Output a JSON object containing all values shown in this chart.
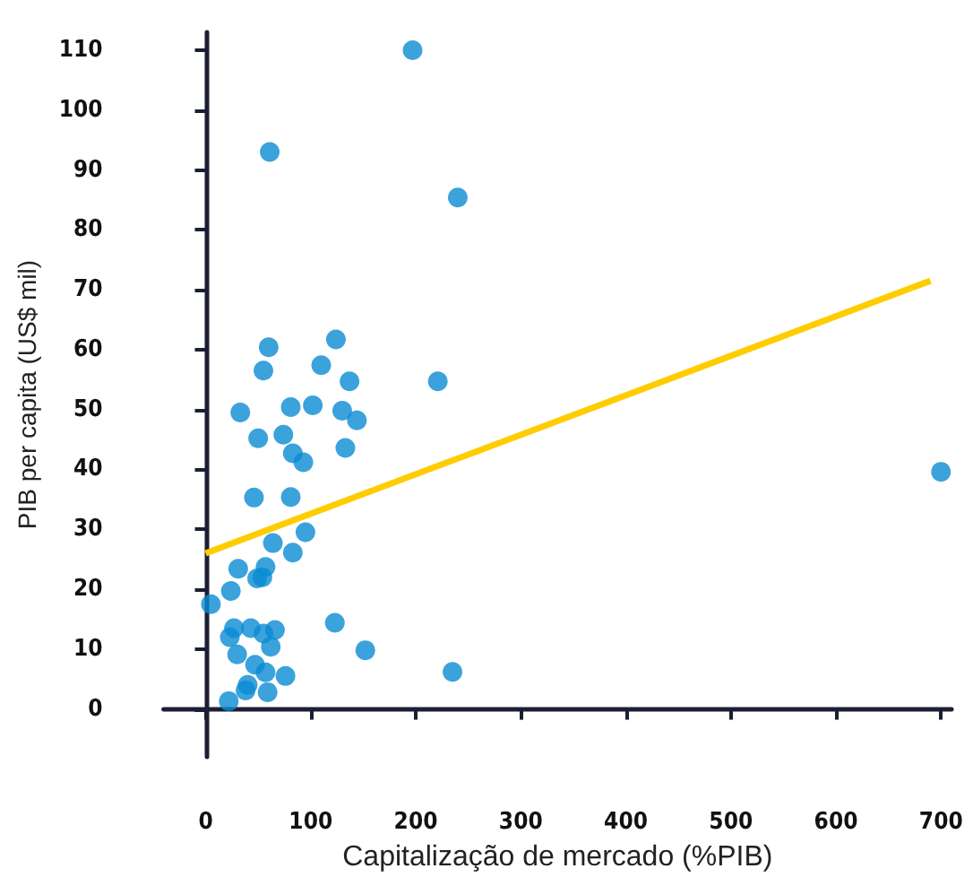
{
  "chart_data": {
    "type": "scatter",
    "xlabel": "Capitalização de mercado (%PIB)",
    "ylabel": "PIB per capita (US$ mil)",
    "xlim": [
      -40,
      710
    ],
    "xticks": [
      0,
      100,
      200,
      300,
      400,
      500,
      600,
      700
    ],
    "ylim": [
      -8,
      113
    ],
    "yticks": [
      0,
      10,
      20,
      30,
      40,
      50,
      60,
      70,
      80,
      90,
      100,
      110
    ],
    "marker": "circle",
    "series": [
      {
        "color": "#0a8bd3",
        "x": [
          197,
          61,
          240,
          60,
          124,
          55,
          110,
          137,
          221,
          33,
          81,
          102,
          130,
          144,
          50,
          74,
          83,
          93,
          133,
          46,
          81,
          95,
          64,
          83,
          31,
          57,
          49,
          54,
          24,
          5,
          27,
          23,
          43,
          55,
          66,
          62,
          30,
          123,
          152,
          235,
          47,
          57,
          76,
          40,
          38,
          59,
          22,
          700
        ],
        "values": [
          110,
          93,
          85.4,
          60.4,
          61.7,
          56.5,
          57.4,
          54.7,
          54.7,
          49.5,
          50.4,
          50.7,
          49.8,
          48.2,
          45.2,
          45.8,
          42.7,
          41.2,
          43.6,
          35.3,
          35.4,
          29.5,
          27.7,
          26.1,
          23.4,
          23.7,
          21.8,
          22,
          19.7,
          17.5,
          13.5,
          12,
          13.5,
          12.6,
          13.2,
          10.4,
          9.1,
          14.4,
          9.8,
          6.2,
          7.4,
          6.1,
          5.5,
          4,
          3.1,
          2.8,
          1.3,
          39.6
        ]
      },
      {
        "type": "line",
        "color": "#ffcc00",
        "x": [
          0,
          690
        ],
        "values": [
          26,
          71.5
        ],
        "marker": "none",
        "line_style": "solid"
      }
    ]
  }
}
